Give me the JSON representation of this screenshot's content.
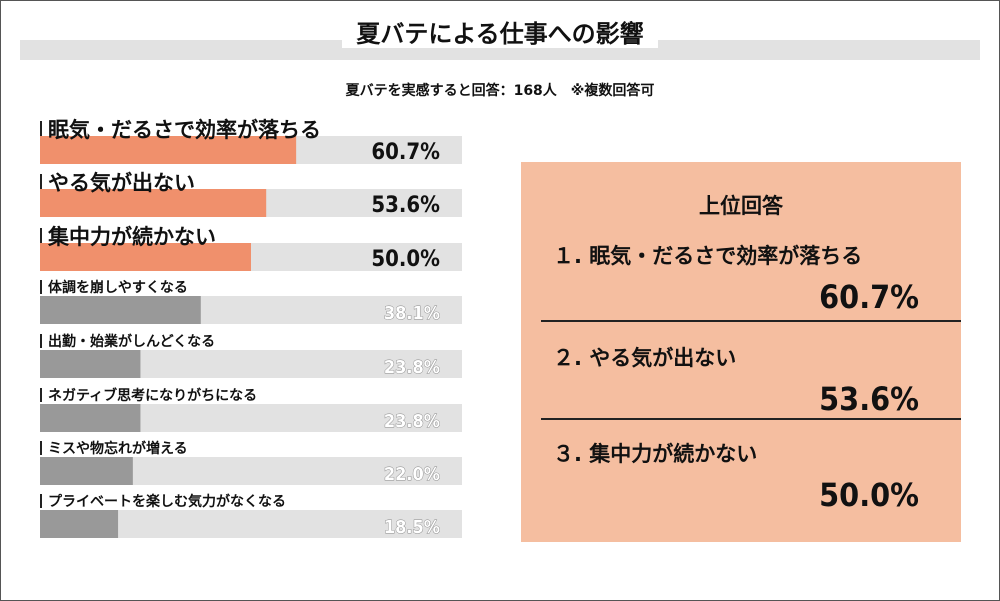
{
  "title": "夏バテによる仕事への影響",
  "subtitle": "夏バテを実感すると回答：168人　※複数回答可",
  "colors": {
    "highlight_bar": "#f0906c",
    "other_bar": "#999999",
    "track": "#e2e2e2",
    "panel": "#f5bea0"
  },
  "chart_data": {
    "type": "bar",
    "orientation": "horizontal",
    "xlim": [
      0,
      100
    ],
    "categories": [
      "眠気・だるさで効率が落ちる",
      "やる気が出ない",
      "集中力が続かない",
      "体調を崩しやすくなる",
      "出勤・始業がしんどくなる",
      "ネガティブ思考になりがちになる",
      "ミスや物忘れが増える",
      "プライベートを楽しむ気力がなくなる"
    ],
    "values": [
      60.7,
      53.6,
      50.0,
      38.1,
      23.8,
      23.8,
      22.0,
      18.5
    ],
    "value_labels": [
      "60.7%",
      "53.6%",
      "50.0%",
      "38.1%",
      "23.8%",
      "23.8%",
      "22.0%",
      "18.5%"
    ],
    "highlighted": [
      true,
      true,
      true,
      false,
      false,
      false,
      false,
      false
    ]
  },
  "top_panel": {
    "heading": "上位回答",
    "items": [
      {
        "rank_label": "１. 眠気・だるさで効率が落ちる",
        "value": "60.7%"
      },
      {
        "rank_label": "２. やる気が出ない",
        "value": "53.6%"
      },
      {
        "rank_label": "３. 集中力が続かない",
        "value": "50.0%"
      }
    ]
  }
}
